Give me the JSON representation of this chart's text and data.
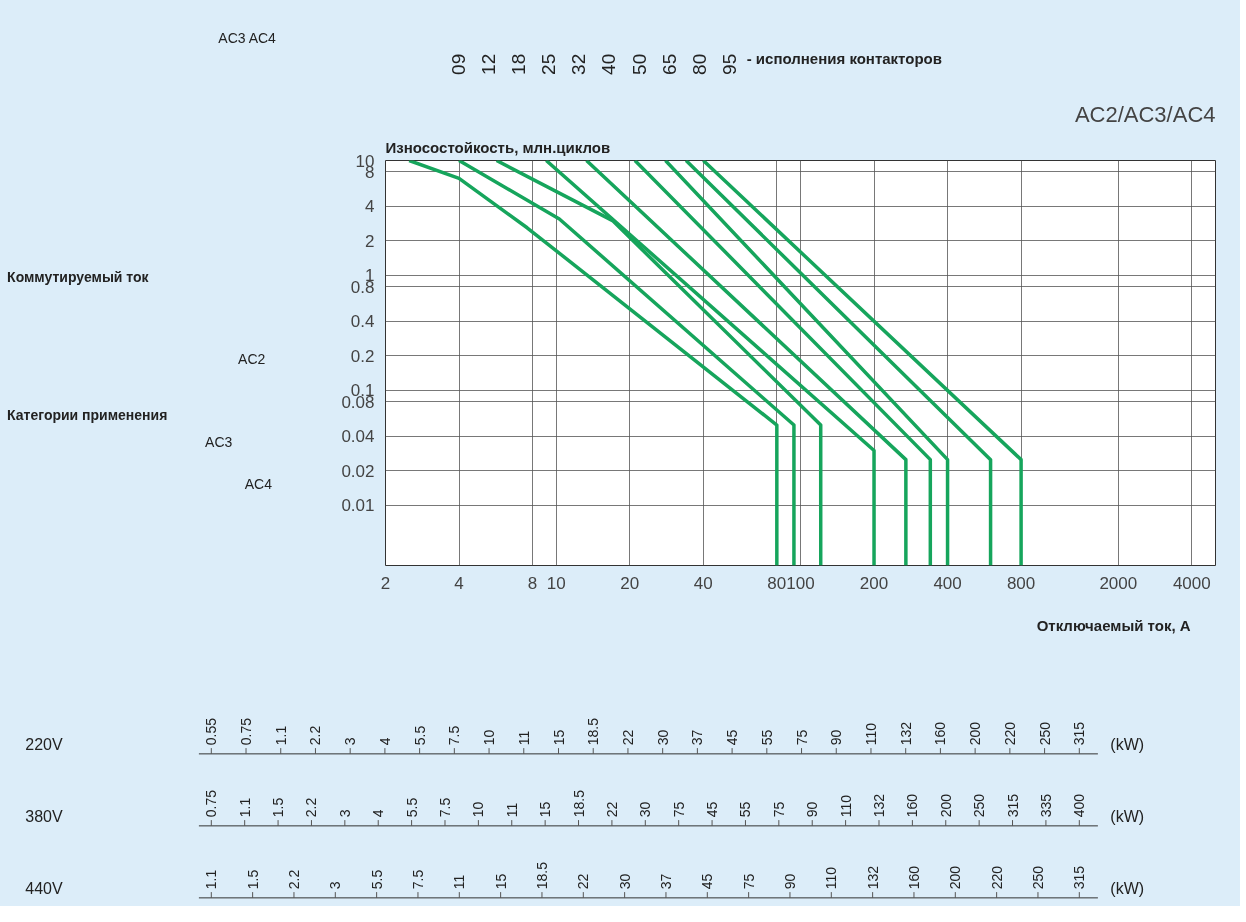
{
  "chart_data": [
    {
      "type": "other",
      "annotations": [
        "AC3  AC4",
        "Коммутируемый ток",
        "AC2",
        "Категории применения",
        "AC3",
        "AC4"
      ]
    },
    {
      "type": "line",
      "title": "AC2/AC3/AC4",
      "ylabel": "Износостойкость, млн.циклов",
      "xlabel": "Отключаемый ток, А",
      "log": "xy",
      "grid": true,
      "annotations": [
        "09",
        "12",
        "18",
        "25",
        "32",
        "40",
        "50",
        "65",
        "80",
        "95",
        "- исполнения контакторов"
      ],
      "xlim": [
        2,
        5000
      ],
      "ylim": [
        0.003,
        10
      ],
      "xticks": [
        2,
        4,
        8,
        10,
        20,
        40,
        80,
        100,
        200,
        400,
        800,
        2000,
        4000
      ],
      "yticks": [
        0.01,
        0.02,
        0.04,
        0.08,
        0.1,
        0.2,
        0.4,
        0.8,
        1,
        2,
        4,
        8,
        10
      ],
      "series": [
        {
          "color": "#16a55c",
          "x": [
            2.5,
            4,
            7.6,
            80,
            80
          ],
          "values": [
            10,
            7,
            2.6,
            0.05,
            0.003
          ]
        },
        {
          "color": "#16a55c",
          "x": [
            4,
            10.3,
            94,
            94
          ],
          "values": [
            10,
            3.1,
            0.05,
            0.003
          ]
        },
        {
          "color": "#16a55c",
          "x": [
            5.7,
            17,
            121,
            121
          ],
          "values": [
            10,
            3,
            0.05,
            0.003
          ]
        },
        {
          "color": "#16a55c",
          "x": [
            9.1,
            200,
            200
          ],
          "values": [
            10,
            0.03,
            0.003
          ]
        },
        {
          "color": "#16a55c",
          "x": [
            13.3,
            270,
            270
          ],
          "values": [
            10,
            0.025,
            0.003
          ]
        },
        {
          "color": "#16a55c",
          "x": [
            21,
            340,
            340
          ],
          "values": [
            10,
            0.025,
            0.003
          ]
        },
        {
          "color": "#16a55c",
          "x": [
            28,
            400,
            400
          ],
          "values": [
            10,
            0.025,
            0.003
          ]
        },
        {
          "color": "#16a55c",
          "x": [
            34,
            600,
            600
          ],
          "values": [
            10,
            0.025,
            0.003
          ]
        },
        {
          "color": "#16a55c",
          "x": [
            40,
            800,
            800
          ],
          "values": [
            10,
            0.025,
            0.003
          ]
        }
      ]
    },
    {
      "type": "other",
      "title": "220V",
      "xlabel": "(kW)",
      "annotations": [
        "0.55",
        "0.75",
        "1.1",
        "2.2",
        "3",
        "4",
        "5.5",
        "7.5",
        "10",
        "11",
        "15",
        "18.5",
        "22",
        "30",
        "37",
        "45",
        "55",
        "75",
        "90",
        "110",
        "132",
        "160",
        "200",
        "220",
        "250",
        "315"
      ]
    },
    {
      "type": "other",
      "title": "380V",
      "xlabel": "(kW)",
      "annotations": [
        "0.75",
        "1.1",
        "1.5",
        "2.2",
        "3",
        "4",
        "5.5",
        "7.5",
        "10",
        "11",
        "15",
        "18.5",
        "22",
        "30",
        "75",
        "45",
        "55",
        "75",
        "90",
        "110",
        "132",
        "160",
        "200",
        "250",
        "315",
        "335",
        "400"
      ]
    },
    {
      "type": "other",
      "title": "440V",
      "xlabel": "(kW)",
      "annotations": [
        "1.1",
        "1.5",
        "2.2",
        "3",
        "5.5",
        "7.5",
        "11",
        "15",
        "18.5",
        "22",
        "30",
        "37",
        "45",
        "75",
        "90",
        "110",
        "132",
        "160",
        "200",
        "220",
        "250",
        "315"
      ]
    }
  ]
}
